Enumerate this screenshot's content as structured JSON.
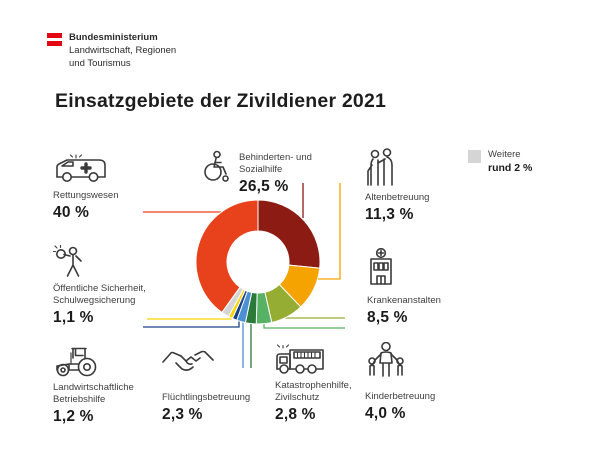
{
  "header": {
    "ministry": "Bundesministerium",
    "department_line1": "Landwirtschaft, Regionen",
    "department_line2": "und Tourismus",
    "flag_red": "#E30613"
  },
  "title": "Einsatzgebiete der Zivildiener 2021",
  "chart_data": {
    "type": "pie",
    "subtype": "donut",
    "title": "Einsatzgebiete der Zivildiener 2021",
    "unit": "%",
    "direction": "clockwise",
    "start": "12-o'clock",
    "legend_position": "around-chart",
    "segments": [
      {
        "label": "Behinderten- und Sozialhilfe",
        "value": 26.5,
        "display": "26,5 %",
        "color": "#8C1B13",
        "icon": "wheelchair-icon"
      },
      {
        "label": "Altenbetreuung",
        "value": 11.3,
        "display": "11,3 %",
        "color": "#F5A300",
        "icon": "elderly-care-icon"
      },
      {
        "label": "Krankenanstalten",
        "value": 8.5,
        "display": "8,5 %",
        "color": "#96AD33",
        "icon": "hospital-icon"
      },
      {
        "label": "Kinderbetreuung",
        "value": 4.0,
        "display": "4,0 %",
        "color": "#58B265",
        "icon": "childcare-icon"
      },
      {
        "label": "Katastrophenhilfe, Zivilschutz",
        "value": 2.8,
        "display": "2,8 %",
        "color": "#2B7A3A",
        "icon": "firetruck-icon"
      },
      {
        "label": "Flüchtlingsbetreuung",
        "value": 2.3,
        "display": "2,3 %",
        "color": "#4B90D3",
        "icon": "handshake-icon"
      },
      {
        "label": "Landwirtschaftliche Betriebshilfe",
        "value": 1.2,
        "display": "1,2 %",
        "color": "#1A4287",
        "icon": "tractor-icon"
      },
      {
        "label": "Öffentliche Sicherheit, Schulwegsicherung",
        "value": 1.1,
        "display": "1,1 %",
        "color": "#FFD400",
        "icon": "crossing-guard-icon"
      },
      {
        "label": "Weitere",
        "value": 2.0,
        "display": "rund 2 %",
        "color": "#D5D5D5",
        "icon": "legend-swatch"
      },
      {
        "label": "Rettungswesen",
        "value": 40.0,
        "display": "40 %",
        "color": "#E8421C",
        "icon": "ambulance-icon"
      }
    ]
  },
  "callouts": {
    "rettungswesen": {
      "line1": "Rettungswesen",
      "value": "40 %"
    },
    "behinderten": {
      "line1": "Behinderten- und",
      "line2": "Sozialhilfe",
      "value": "26,5 %"
    },
    "altenbetreuung": {
      "line1": "Altenbetreuung",
      "value": "11,3 %"
    },
    "weitere": {
      "line1": "Weitere",
      "value": "rund 2 %"
    },
    "oeffentliche": {
      "line1": "Öffentliche Sicherheit,",
      "line2": "Schulwegsicherung",
      "value": "1,1 %"
    },
    "krankenanstalten": {
      "line1": "Krankenanstalten",
      "value": "8,5 %"
    },
    "landwirtschaft": {
      "line1": "Landwirtschaftliche",
      "line2": "Betriebshilfe",
      "value": "1,2 %"
    },
    "fluechtlinge": {
      "line1": "Flüchtlingsbetreuung",
      "value": "2,3 %"
    },
    "katastrophen": {
      "line1": "Katastrophenhilfe,",
      "line2": "Zivilschutz",
      "value": "2,8 %"
    },
    "kinderbetreuung": {
      "line1": "Kinderbetreuung",
      "value": "4,0 %"
    }
  }
}
